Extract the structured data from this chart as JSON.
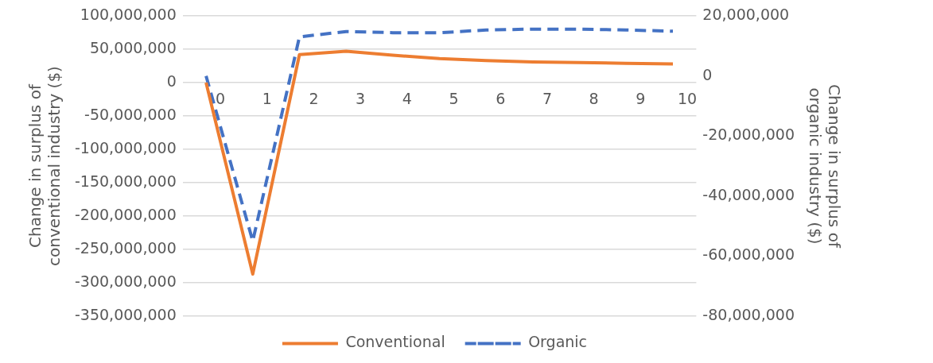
{
  "chart_data": {
    "type": "line",
    "ylabel": "Change in surplus of conventional industry ($)",
    "y2label": "Change in surplus of organic industry ($)",
    "categories": [
      "0",
      "1",
      "2",
      "3",
      "4",
      "5",
      "6",
      "7",
      "8",
      "9",
      "10"
    ],
    "series": [
      {
        "name": "Conventional",
        "color": "#ed7d31",
        "line_style": "solid",
        "values": [
          0,
          -287000000,
          42000000,
          47000000,
          41000000,
          36000000,
          33000000,
          31000000,
          30000000,
          29000000,
          28000000
        ]
      },
      {
        "name": "Organic",
        "color": "#4472c4",
        "line_style": "dashed",
        "axis": "y2",
        "values": [
          0,
          -55000000,
          13000000,
          14800000,
          14400000,
          14400000,
          15300000,
          15600000,
          15600000,
          15300000,
          14900000
        ]
      }
    ],
    "ylim": [
      -350000000,
      100000000
    ],
    "yticks": [
      {
        "value": -350000000,
        "label": "-350,000,000"
      },
      {
        "value": -300000000,
        "label": "-300,000,000"
      },
      {
        "value": -250000000,
        "label": "-250,000,000"
      },
      {
        "value": -200000000,
        "label": "-200,000,000"
      },
      {
        "value": -150000000,
        "label": "-150,000,000"
      },
      {
        "value": -100000000,
        "label": "-100,000,000"
      },
      {
        "value": -50000000,
        "label": "-50,000,000"
      },
      0,
      {
        "value": 50000000,
        "label": "50,000,000"
      },
      {
        "value": 100000000,
        "label": "100,000,000"
      }
    ],
    "y2lim": [
      -80000000,
      20000000
    ],
    "y2ticks": [
      {
        "value": -80000000,
        "label": "-80,000,000"
      },
      {
        "value": -60000000,
        "label": "-60,000,000"
      },
      {
        "value": -40000000,
        "label": "-40,000,000"
      },
      {
        "value": -20000000,
        "label": "-20,000,000"
      },
      0,
      {
        "value": 20000000,
        "label": "20,000,000"
      }
    ],
    "grid": "y",
    "marker": "none",
    "legend": "bottom"
  }
}
